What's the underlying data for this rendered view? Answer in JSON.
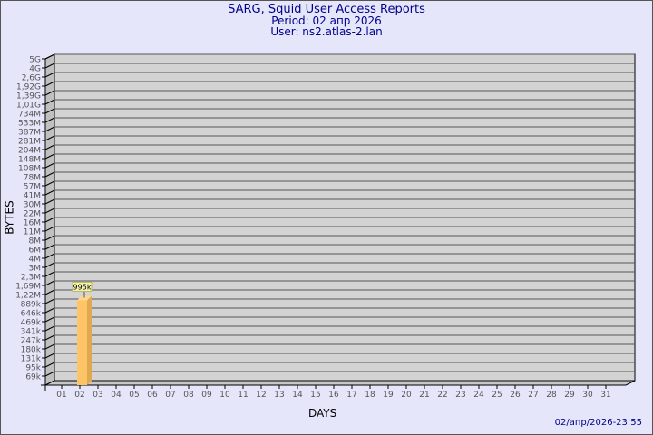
{
  "title": "SARG, Squid User Access Reports",
  "period": "Period: 02 апр 2026",
  "user": "User: ns2.atlas-2.lan",
  "timestamp": "02/апр/2026-23:55",
  "chart_data": {
    "type": "bar",
    "xlabel": "DAYS",
    "ylabel": "BYTES",
    "categories": [
      "01",
      "02",
      "03",
      "04",
      "05",
      "06",
      "07",
      "08",
      "09",
      "10",
      "11",
      "12",
      "13",
      "14",
      "15",
      "16",
      "17",
      "18",
      "19",
      "20",
      "21",
      "22",
      "23",
      "24",
      "25",
      "26",
      "27",
      "28",
      "29",
      "30",
      "31"
    ],
    "y_scale": "log",
    "y_tick_labels": [
      "5G",
      "4G",
      "2,6G",
      "1,92G",
      "1,39G",
      "1,01G",
      "734M",
      "533M",
      "387M",
      "281M",
      "204M",
      "148M",
      "108M",
      "78M",
      "57M",
      "41M",
      "30M",
      "22M",
      "16M",
      "11M",
      "8M",
      "6M",
      "4M",
      "3M",
      "2,3M",
      "1,69M",
      "1,22M",
      "889k",
      "646k",
      "469k",
      "341k",
      "247k",
      "180k",
      "131k",
      "95k",
      "69k"
    ],
    "series": [
      {
        "values": [
          null,
          995000,
          null,
          null,
          null,
          null,
          null,
          null,
          null,
          null,
          null,
          null,
          null,
          null,
          null,
          null,
          null,
          null,
          null,
          null,
          null,
          null,
          null,
          null,
          null,
          null,
          null,
          null,
          null,
          null,
          null
        ],
        "data_labels": [
          null,
          "995k"
        ]
      }
    ],
    "grid": true,
    "colors": {
      "bar": "#ffc466",
      "bar_side": "#e0a850",
      "wall": "#d3d3d3",
      "label_bg": "#f5f5b0"
    }
  }
}
